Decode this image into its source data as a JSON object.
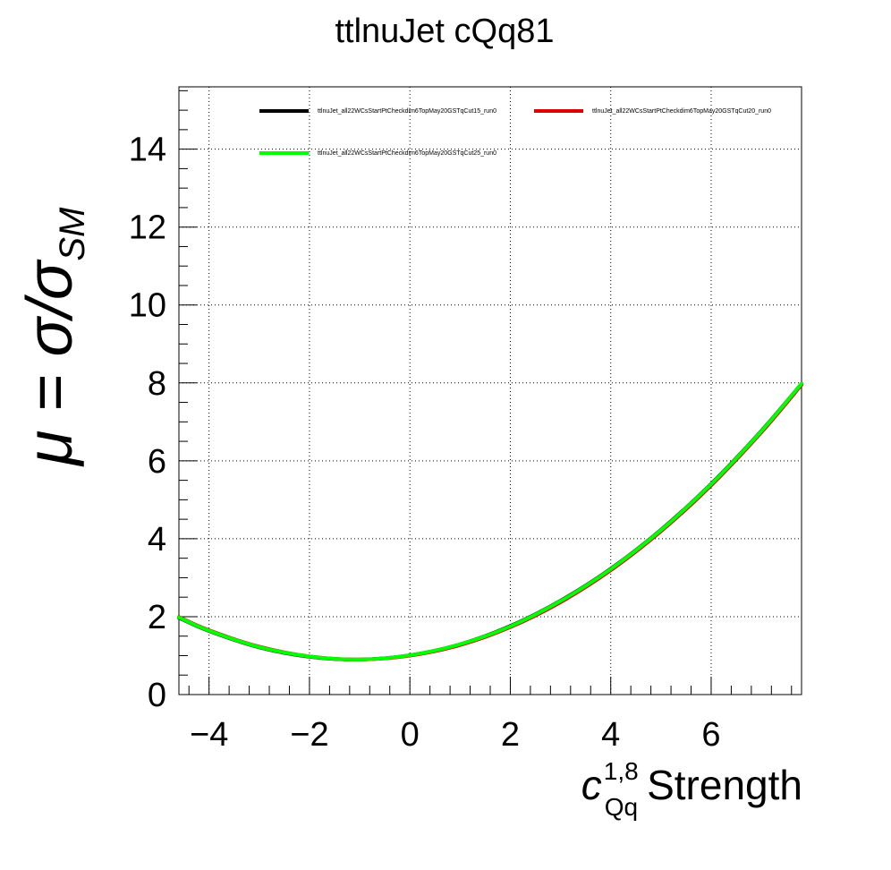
{
  "chart_data": {
    "type": "line",
    "title": "ttlnuJet cQq81",
    "ylabel": {
      "main": "μ = σ/σ",
      "subscript": "SM"
    },
    "xlabel": {
      "symbol": "c",
      "superscript": "1,8",
      "subscript": "Qq",
      "text": "Strength"
    },
    "xlim": [
      -4.6,
      7.8
    ],
    "ylim": [
      0,
      15.6
    ],
    "xticks": [
      -4,
      -2,
      0,
      2,
      4,
      6
    ],
    "xtick_labels": [
      "−4",
      "−2",
      "0",
      "2",
      "4",
      "6"
    ],
    "yticks": [
      0,
      2,
      4,
      6,
      8,
      10,
      12,
      14
    ],
    "ytick_labels": [
      "0",
      "2",
      "4",
      "6",
      "8",
      "10",
      "12",
      "14"
    ],
    "grid": true,
    "legend_position": "top",
    "series": [
      {
        "name": "ttlnuJet_all22WCsStartPtCheckdim6TopMay20GSTqCut15_run0",
        "color": "#000000",
        "x": [
          -4.6,
          -4.0,
          -3.0,
          -2.0,
          -1.0,
          0.0,
          1.0,
          2.0,
          3.0,
          4.0,
          5.0,
          6.0,
          7.0,
          7.8
        ],
        "y": [
          1.97,
          1.63,
          1.21,
          0.97,
          0.9,
          1.01,
          1.29,
          1.76,
          2.41,
          3.23,
          4.23,
          5.41,
          6.77,
          7.98
        ]
      },
      {
        "name": "ttlnuJet_all22WCsStartPtCheckdim6TopMay20GSTqCut20_run0",
        "color": "#dd0000",
        "x": [
          -4.6,
          -4.0,
          -3.0,
          -2.0,
          -1.0,
          0.0,
          1.0,
          2.0,
          3.0,
          4.0,
          5.0,
          6.0,
          7.0,
          7.8
        ],
        "y": [
          1.99,
          1.65,
          1.23,
          0.98,
          0.9,
          1.0,
          1.27,
          1.73,
          2.37,
          3.19,
          4.19,
          5.37,
          6.73,
          7.95
        ]
      },
      {
        "name": "ttlnuJet_all22WCsStartPtCheckdim6TopMay20GSTqCut25_run0",
        "color": "#00ff00",
        "x": [
          -4.6,
          -4.0,
          -3.0,
          -2.0,
          -1.0,
          0.0,
          1.0,
          2.0,
          3.0,
          4.0,
          5.0,
          6.0,
          7.0,
          7.8
        ],
        "y": [
          1.98,
          1.64,
          1.22,
          0.98,
          0.9,
          1.01,
          1.29,
          1.75,
          2.4,
          3.22,
          4.22,
          5.4,
          6.76,
          7.98
        ]
      }
    ]
  }
}
